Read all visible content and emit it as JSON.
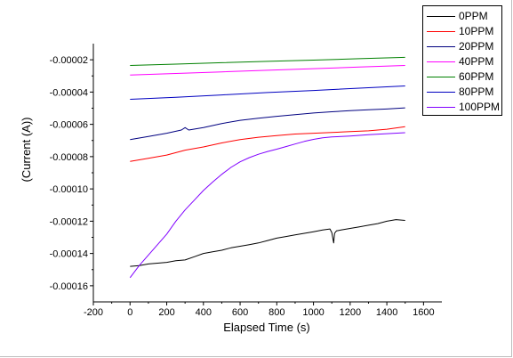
{
  "chart_data": {
    "type": "line",
    "title": "",
    "xlabel": "Elapsed Time (s)",
    "ylabel": "(Current (A))",
    "xlim": [
      -200,
      1700
    ],
    "ylim": [
      -0.00017,
      -1e-05
    ],
    "xticks": [
      -200,
      0,
      200,
      400,
      600,
      800,
      1000,
      1200,
      1400,
      1600
    ],
    "xtick_labels": [
      "-200",
      "0",
      "200",
      "400",
      "600",
      "800",
      "1000",
      "1200",
      "1400",
      "1600"
    ],
    "yticks": [
      -2e-05,
      -4e-05,
      -6e-05,
      -8e-05,
      -0.0001,
      -0.00012,
      -0.00014,
      -0.00016
    ],
    "ytick_labels": [
      "-0.00002",
      "-0.00004",
      "-0.00006",
      "-0.00008",
      "-0.00010",
      "-0.00012",
      "-0.00014",
      "-0.00016"
    ],
    "grid": false,
    "legend_position": "top-right",
    "series": [
      {
        "name": "0PPM",
        "color": "#000000",
        "x": [
          0,
          50,
          100,
          150,
          200,
          250,
          300,
          350,
          400,
          450,
          500,
          550,
          600,
          650,
          700,
          750,
          800,
          850,
          900,
          950,
          1000,
          1050,
          1090,
          1100,
          1110,
          1115,
          1125,
          1150,
          1200,
          1250,
          1300,
          1350,
          1400,
          1450,
          1500
        ],
        "y": [
          -0.000148,
          -0.0001475,
          -0.0001465,
          -0.000146,
          -0.0001455,
          -0.0001445,
          -0.000144,
          -0.000142,
          -0.00014,
          -0.000139,
          -0.000138,
          -0.0001365,
          -0.0001355,
          -0.0001345,
          -0.0001335,
          -0.000132,
          -0.0001305,
          -0.0001295,
          -0.0001285,
          -0.0001275,
          -0.0001265,
          -0.0001255,
          -0.0001248,
          -0.000127,
          -0.0001335,
          -0.0001275,
          -0.000126,
          -0.0001255,
          -0.0001245,
          -0.0001235,
          -0.0001225,
          -0.0001215,
          -0.00012,
          -0.000119,
          -0.0001195
        ]
      },
      {
        "name": "10PPM",
        "color": "#ff0000",
        "x": [
          0,
          100,
          200,
          300,
          400,
          500,
          600,
          700,
          800,
          900,
          1000,
          1100,
          1200,
          1300,
          1400,
          1500
        ],
        "y": [
          -8.3e-05,
          -8.1e-05,
          -7.9e-05,
          -7.6e-05,
          -7.4e-05,
          -7.15e-05,
          -6.95e-05,
          -6.8e-05,
          -6.7e-05,
          -6.6e-05,
          -6.55e-05,
          -6.5e-05,
          -6.45e-05,
          -6.4e-05,
          -6.3e-05,
          -6.15e-05
        ]
      },
      {
        "name": "20PPM",
        "color": "#000080",
        "x": [
          0,
          100,
          200,
          280,
          300,
          320,
          400,
          500,
          600,
          700,
          800,
          900,
          1000,
          1100,
          1200,
          1300,
          1400,
          1500
        ],
        "y": [
          -6.95e-05,
          -6.75e-05,
          -6.55e-05,
          -6.35e-05,
          -6.2e-05,
          -6.35e-05,
          -6.2e-05,
          -5.95e-05,
          -5.75e-05,
          -5.62e-05,
          -5.5e-05,
          -5.4e-05,
          -5.3e-05,
          -5.22e-05,
          -5.15e-05,
          -5.1e-05,
          -5.05e-05,
          -4.98e-05
        ]
      },
      {
        "name": "40PPM",
        "color": "#ff00ff",
        "x": [
          0,
          250,
          500,
          750,
          1000,
          1250,
          1500
        ],
        "y": [
          -2.95e-05,
          -2.85e-05,
          -2.75e-05,
          -2.65e-05,
          -2.55e-05,
          -2.45e-05,
          -2.35e-05
        ]
      },
      {
        "name": "60PPM",
        "color": "#008000",
        "x": [
          0,
          250,
          500,
          750,
          1000,
          1250,
          1500
        ],
        "y": [
          -2.35e-05,
          -2.27e-05,
          -2.18e-05,
          -2.1e-05,
          -2.02e-05,
          -1.93e-05,
          -1.85e-05
        ]
      },
      {
        "name": "80PPM",
        "color": "#0000c0",
        "x": [
          0,
          250,
          500,
          750,
          1000,
          1250,
          1500
        ],
        "y": [
          -4.45e-05,
          -4.32e-05,
          -4.18e-05,
          -4.03e-05,
          -3.9e-05,
          -3.76e-05,
          -3.62e-05
        ]
      },
      {
        "name": "100PPM",
        "color": "#8000ff",
        "x": [
          0,
          50,
          100,
          150,
          200,
          250,
          300,
          350,
          400,
          450,
          500,
          550,
          600,
          650,
          700,
          750,
          800,
          850,
          900,
          950,
          1000,
          1050,
          1100,
          1200,
          1300,
          1400,
          1500
        ],
        "y": [
          -0.000155,
          -0.0001475,
          -0.000141,
          -0.0001345,
          -0.000128,
          -0.00012,
          -0.000113,
          -0.000107,
          -0.000101,
          -9.58e-05,
          -9.1e-05,
          -8.67e-05,
          -8.32e-05,
          -8.06e-05,
          -7.85e-05,
          -7.68e-05,
          -7.54e-05,
          -7.38e-05,
          -7.22e-05,
          -7.06e-05,
          -6.93e-05,
          -6.84e-05,
          -6.78e-05,
          -6.72e-05,
          -6.64e-05,
          -6.58e-05,
          -6.52e-05
        ]
      }
    ]
  }
}
